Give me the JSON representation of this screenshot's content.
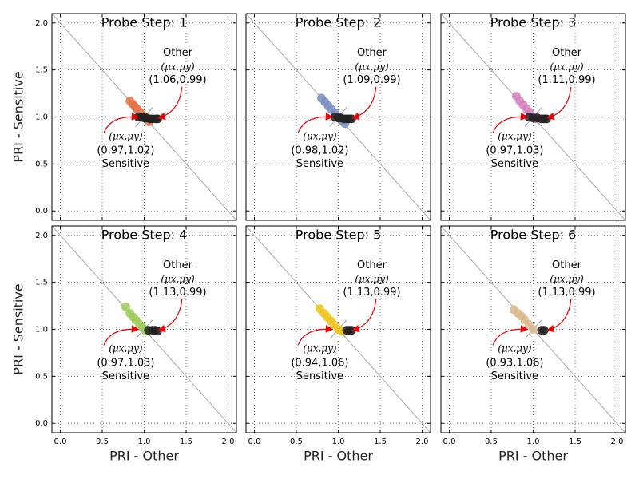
{
  "chart_data": [
    {
      "type": "scatter",
      "title": "Probe Step: 1",
      "ylabel": "PRI - Sensitive",
      "xlim": [
        -0.1,
        2.1
      ],
      "ylim": [
        -0.1,
        2.1
      ],
      "grid": true,
      "xticks": [
        0,
        0.5,
        1,
        1.5,
        2
      ],
      "yticks": [
        {
          "value": 0,
          "label": "0.0"
        },
        {
          "value": 0.5,
          "label": "0.5"
        },
        {
          "value": 1,
          "label": "1.0"
        },
        {
          "value": 1.5,
          "label": "1.5"
        },
        {
          "value": 2,
          "label": "2.0"
        }
      ],
      "series": [
        {
          "color": "#e8744a",
          "x": [
            0.83,
            0.86,
            0.89,
            0.92,
            0.95,
            0.98,
            1.02,
            1.06
          ],
          "values": [
            1.17,
            1.14,
            1.11,
            1.08,
            1.05,
            1.02,
            0.98,
            0.95
          ]
        },
        {
          "color": "#222222",
          "x": [
            0.93,
            0.97,
            1.0,
            1.03,
            1.07,
            1.1,
            1.14,
            1.16
          ],
          "values": [
            1.0,
            1.0,
            0.99,
            0.99,
            0.98,
            0.98,
            0.98,
            0.98
          ]
        }
      ],
      "annotations": {
        "other": [
          "Other",
          "(μx,μy)",
          "(1.06,0.99)"
        ],
        "sensitive": [
          "(μx,μy)",
          "(0.97,1.02)",
          "Sensitive"
        ]
      }
    },
    {
      "type": "scatter",
      "title": "Probe Step: 2",
      "xlim": [
        -0.1,
        2.1
      ],
      "ylim": [
        -0.1,
        2.1
      ],
      "grid": true,
      "xticks": [
        0,
        0.5,
        1,
        1.5,
        2
      ],
      "yticks": [
        0,
        0.5,
        1,
        1.5,
        2
      ],
      "series": [
        {
          "color": "#7b8fc4",
          "x": [
            0.8,
            0.84,
            0.88,
            0.92,
            0.96,
            1.0,
            1.04,
            1.08
          ],
          "values": [
            1.2,
            1.16,
            1.12,
            1.08,
            1.04,
            1.0,
            0.96,
            0.93
          ]
        },
        {
          "color": "#222222",
          "x": [
            0.96,
            1.0,
            1.03,
            1.07,
            1.1,
            1.13,
            1.16
          ],
          "values": [
            1.0,
            0.99,
            0.99,
            0.98,
            0.98,
            0.98,
            0.98
          ]
        }
      ],
      "annotations": {
        "other": [
          "Other",
          "(μx,μy)",
          "(1.09,0.99)"
        ],
        "sensitive": [
          "(μx,μy)",
          "(0.98,1.02)",
          "Sensitive"
        ]
      }
    },
    {
      "type": "scatter",
      "title": "Probe Step: 3",
      "xlim": [
        -0.1,
        2.1
      ],
      "ylim": [
        -0.1,
        2.1
      ],
      "grid": true,
      "xticks": [
        0,
        0.5,
        1,
        1.5,
        2
      ],
      "yticks": [
        0,
        0.5,
        1,
        1.5,
        2
      ],
      "series": [
        {
          "color": "#d77fc0",
          "x": [
            0.8,
            0.84,
            0.88,
            0.92,
            0.96,
            1.0,
            1.04
          ],
          "values": [
            1.22,
            1.17,
            1.13,
            1.09,
            1.05,
            1.0,
            0.98
          ]
        },
        {
          "color": "#222222",
          "x": [
            0.95,
            1.0,
            1.05,
            1.1,
            1.13,
            1.16
          ],
          "values": [
            1.0,
            0.99,
            0.99,
            0.98,
            0.98,
            0.98
          ]
        }
      ],
      "annotations": {
        "other": [
          "Other",
          "(μx,μy)",
          "(1.11,0.99)"
        ],
        "sensitive": [
          "(μx,μy)",
          "(0.97,1.03)",
          "Sensitive"
        ]
      }
    },
    {
      "type": "scatter",
      "title": "Probe Step: 4",
      "ylabel": "PRI - Sensitive",
      "xlabel": "PRI - Other",
      "xlim": [
        -0.1,
        2.1
      ],
      "ylim": [
        -0.1,
        2.1
      ],
      "grid": true,
      "xticks": [
        {
          "value": 0,
          "label": "0.0"
        },
        {
          "value": 0.5,
          "label": "0.5"
        },
        {
          "value": 1,
          "label": "1.0"
        },
        {
          "value": 1.5,
          "label": "1.5"
        },
        {
          "value": 2,
          "label": "2.0"
        }
      ],
      "yticks": [
        {
          "value": 0,
          "label": "0.0"
        },
        {
          "value": 0.5,
          "label": "0.5"
        },
        {
          "value": 1,
          "label": "1.0"
        },
        {
          "value": 1.5,
          "label": "1.5"
        },
        {
          "value": 2,
          "label": "2.0"
        }
      ],
      "series": [
        {
          "color": "#9ccc5a",
          "x": [
            0.78,
            0.83,
            0.87,
            0.9,
            0.94,
            0.98,
            1.02
          ],
          "values": [
            1.24,
            1.17,
            1.13,
            1.1,
            1.06,
            1.02,
            0.98
          ]
        },
        {
          "color": "#222222",
          "x": [
            1.05,
            1.1,
            1.13,
            1.16
          ],
          "values": [
            0.99,
            0.99,
            0.99,
            0.98
          ]
        }
      ],
      "annotations": {
        "other": [
          "Other",
          "(μx,μy)",
          "(1.13,0.99)"
        ],
        "sensitive": [
          "(μx,μy)",
          "(0.97,1.03)",
          "Sensitive"
        ]
      }
    },
    {
      "type": "scatter",
      "title": "Probe Step: 5",
      "xlabel": "PRI - Other",
      "xlim": [
        -0.1,
        2.1
      ],
      "ylim": [
        -0.1,
        2.1
      ],
      "grid": true,
      "xticks": [
        {
          "value": 0,
          "label": "0.0"
        },
        {
          "value": 0.5,
          "label": "0.5"
        },
        {
          "value": 1,
          "label": "1.0"
        },
        {
          "value": 1.5,
          "label": "1.5"
        },
        {
          "value": 2,
          "label": "2.0"
        }
      ],
      "yticks": [
        0,
        0.5,
        1,
        1.5,
        2
      ],
      "series": [
        {
          "color": "#f0c419",
          "x": [
            0.78,
            0.83,
            0.87,
            0.91,
            0.95,
            1.0,
            1.04
          ],
          "values": [
            1.22,
            1.17,
            1.13,
            1.09,
            1.05,
            1.0,
            0.98
          ]
        },
        {
          "color": "#222222",
          "x": [
            1.1,
            1.13,
            1.16
          ],
          "values": [
            0.99,
            0.99,
            0.99
          ]
        }
      ],
      "annotations": {
        "other": [
          "Other",
          "(μx,μy)",
          "(1.13,0.99)"
        ],
        "sensitive": [
          "(μx,μy)",
          "(0.94,1.06)",
          "Sensitive"
        ]
      }
    },
    {
      "type": "scatter",
      "title": "Probe Step: 6",
      "xlabel": "PRI - Other",
      "xlim": [
        -0.1,
        2.1
      ],
      "ylim": [
        -0.1,
        2.1
      ],
      "grid": true,
      "xticks": [
        {
          "value": 0,
          "label": "0.0"
        },
        {
          "value": 0.5,
          "label": "0.5"
        },
        {
          "value": 1,
          "label": "1.0"
        },
        {
          "value": 1.5,
          "label": "1.5"
        },
        {
          "value": 2,
          "label": "2.0"
        }
      ],
      "yticks": [
        0,
        0.5,
        1,
        1.5,
        2
      ],
      "series": [
        {
          "color": "#dcb98a",
          "x": [
            0.77,
            0.82,
            0.86,
            0.9,
            0.95,
            1.0
          ],
          "values": [
            1.21,
            1.17,
            1.14,
            1.1,
            1.05,
            1.0
          ]
        },
        {
          "color": "#222222",
          "x": [
            1.1,
            1.13
          ],
          "values": [
            0.99,
            0.99
          ]
        }
      ],
      "annotations": {
        "other": [
          "Other",
          "(μx,μy)",
          "(1.13,0.99)"
        ],
        "sensitive": [
          "(μx,μy)",
          "(0.93,1.06)",
          "Sensitive"
        ]
      }
    }
  ]
}
